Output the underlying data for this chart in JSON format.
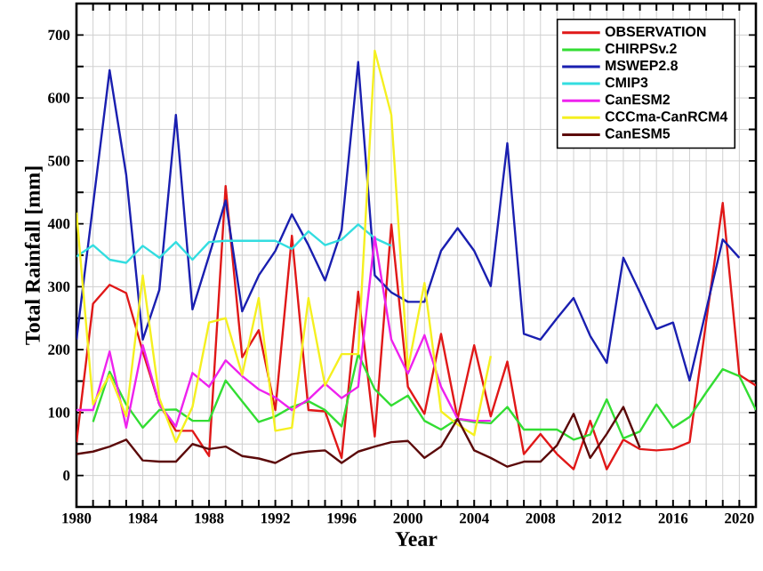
{
  "chart_data": {
    "type": "line",
    "xlabel": "Year",
    "ylabel": "Total Rainfall [mm]",
    "x": [
      1980,
      1981,
      1982,
      1983,
      1984,
      1985,
      1986,
      1987,
      1988,
      1989,
      1990,
      1991,
      1992,
      1993,
      1994,
      1995,
      1996,
      1997,
      1998,
      1999,
      2000,
      2001,
      2002,
      2003,
      2004,
      2005,
      2006,
      2007,
      2008,
      2009,
      2010,
      2011,
      2012,
      2013,
      2014,
      2015,
      2016,
      2017,
      2018,
      2019,
      2020,
      2021
    ],
    "xlim": [
      1980,
      2021
    ],
    "ylim": [
      -50,
      750
    ],
    "xticks": [
      {
        "value": 1980,
        "label": "1980"
      },
      {
        "value": 1981,
        "label": null
      },
      {
        "value": 1982,
        "label": null
      },
      {
        "value": 1983,
        "label": null
      },
      {
        "value": 1984,
        "label": "1984"
      },
      {
        "value": 1985,
        "label": null
      },
      {
        "value": 1986,
        "label": null
      },
      {
        "value": 1987,
        "label": null
      },
      {
        "value": 1988,
        "label": "1988"
      },
      {
        "value": 1989,
        "label": null
      },
      {
        "value": 1990,
        "label": null
      },
      {
        "value": 1991,
        "label": null
      },
      {
        "value": 1992,
        "label": "1992"
      },
      {
        "value": 1993,
        "label": null
      },
      {
        "value": 1994,
        "label": null
      },
      {
        "value": 1995,
        "label": null
      },
      {
        "value": 1996,
        "label": "1996"
      },
      {
        "value": 1997,
        "label": null
      },
      {
        "value": 1998,
        "label": null
      },
      {
        "value": 1999,
        "label": null
      },
      {
        "value": 2000,
        "label": "2000"
      },
      {
        "value": 2001,
        "label": null
      },
      {
        "value": 2002,
        "label": null
      },
      {
        "value": 2003,
        "label": null
      },
      {
        "value": 2004,
        "label": "2004"
      },
      {
        "value": 2005,
        "label": null
      },
      {
        "value": 2006,
        "label": null
      },
      {
        "value": 2007,
        "label": null
      },
      {
        "value": 2008,
        "label": "2008"
      },
      {
        "value": 2009,
        "label": null
      },
      {
        "value": 2010,
        "label": null
      },
      {
        "value": 2011,
        "label": null
      },
      {
        "value": 2012,
        "label": "2012"
      },
      {
        "value": 2013,
        "label": null
      },
      {
        "value": 2014,
        "label": null
      },
      {
        "value": 2015,
        "label": null
      },
      {
        "value": 2016,
        "label": "2016"
      },
      {
        "value": 2017,
        "label": null
      },
      {
        "value": 2018,
        "label": null
      },
      {
        "value": 2019,
        "label": null
      },
      {
        "value": 2020,
        "label": "2020"
      },
      {
        "value": 2021,
        "label": null
      }
    ],
    "yticks": [
      0,
      {
        "value": 50,
        "label": null
      },
      100,
      {
        "value": 150,
        "label": null
      },
      200,
      {
        "value": 250,
        "label": null
      },
      300,
      {
        "value": 350,
        "label": null
      },
      400,
      {
        "value": 450,
        "label": null
      },
      500,
      {
        "value": 550,
        "label": null
      },
      600,
      {
        "value": 650,
        "label": null
      },
      700
    ],
    "grid": true,
    "legend": "top right",
    "series": [
      {
        "name": "OBSERVATION",
        "color": "#e01818",
        "values": [
          53,
          273,
          303,
          290,
          197,
          113,
          71,
          71,
          31,
          460,
          188,
          231,
          104,
          381,
          104,
          102,
          28,
          292,
          62,
          399,
          141,
          98,
          225,
          90,
          207,
          94,
          181,
          34,
          66,
          34,
          10,
          87,
          10,
          57,
          42,
          40,
          42,
          53,
          245,
          433,
          160,
          143
        ]
      },
      {
        "name": "CHIRPSv.2",
        "color": "#33dd33",
        "values": [
          null,
          85,
          165,
          113,
          76,
          104,
          105,
          87,
          87,
          151,
          118,
          85,
          94,
          109,
          118,
          104,
          78,
          193,
          137,
          111,
          127,
          87,
          73,
          90,
          85,
          83,
          109,
          73,
          73,
          73,
          57,
          65,
          121,
          59,
          70,
          113,
          76,
          93,
          132,
          169,
          158,
          104
        ]
      },
      {
        "name": "MSWEP2.8",
        "color": "#1a1fb0",
        "values": [
          216,
          430,
          644,
          478,
          216,
          295,
          573,
          264,
          349,
          437,
          261,
          318,
          357,
          415,
          366,
          310,
          390,
          657,
          318,
          291,
          276,
          276,
          357,
          393,
          357,
          301,
          528,
          225,
          216,
          250,
          282,
          222,
          179,
          346,
          291,
          233,
          243,
          151,
          263,
          375,
          346,
          null
        ]
      },
      {
        "name": "CMIP3",
        "color": "#33dde0",
        "values": [
          348,
          366,
          343,
          338,
          365,
          346,
          371,
          343,
          371,
          373,
          373,
          373,
          373,
          360,
          388,
          366,
          375,
          399,
          377,
          365,
          null,
          null,
          null,
          null,
          null,
          null,
          null,
          null,
          null,
          null,
          null,
          null,
          null,
          null,
          null,
          null,
          null,
          null,
          null,
          null,
          null,
          null
        ]
      },
      {
        "name": "CanESM2",
        "color": "#ee22ee",
        "values": [
          104,
          104,
          197,
          76,
          207,
          113,
          78,
          163,
          141,
          183,
          158,
          137,
          124,
          104,
          121,
          146,
          123,
          141,
          379,
          216,
          162,
          223,
          141,
          90,
          87,
          87,
          null,
          null,
          null,
          null,
          null,
          null,
          null,
          null,
          null,
          null,
          null,
          null,
          null,
          null,
          null,
          null
        ]
      },
      {
        "name": "CCCma-CanRCM4",
        "color": "#f5f020",
        "values": [
          418,
          113,
          160,
          94,
          318,
          123,
          53,
          109,
          243,
          250,
          160,
          282,
          71,
          76,
          282,
          143,
          193,
          193,
          675,
          573,
          169,
          306,
          102,
          81,
          64,
          190,
          null,
          null,
          null,
          null,
          null,
          null,
          null,
          null,
          null,
          null,
          null,
          null,
          null,
          null,
          null,
          null
        ]
      },
      {
        "name": "CanESM5",
        "color": "#5c0a0a",
        "values": [
          34,
          38,
          46,
          57,
          24,
          22,
          22,
          50,
          42,
          46,
          31,
          27,
          20,
          34,
          38,
          40,
          20,
          38,
          46,
          53,
          55,
          28,
          46,
          90,
          40,
          28,
          14,
          22,
          22,
          48,
          98,
          28,
          66,
          109,
          44,
          null,
          null,
          null,
          null,
          null,
          null,
          null
        ]
      }
    ]
  }
}
